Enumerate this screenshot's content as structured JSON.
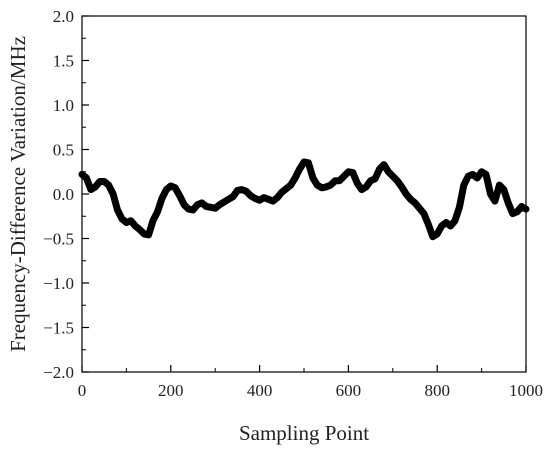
{
  "chart_data": {
    "type": "line",
    "xlabel": "Sampling Point",
    "ylabel": "Frequency-Difference Variation/MHz",
    "xlim": [
      0,
      1000
    ],
    "ylim": [
      -2.0,
      2.0
    ],
    "x_ticks": [
      0,
      200,
      400,
      600,
      800,
      1000
    ],
    "x_tick_labels": [
      "0",
      "200",
      "400",
      "600",
      "800",
      "1000"
    ],
    "y_ticks": [
      -2.0,
      -1.5,
      -1.0,
      -0.5,
      0.0,
      0.5,
      1.0,
      1.5,
      2.0
    ],
    "y_tick_labels": [
      "−2.0",
      "−1.5",
      "−1.0",
      "−0.5",
      "0.0",
      "0.5",
      "1.0",
      "1.5",
      "2.0"
    ],
    "grid": false,
    "line_color": "#000000",
    "series": [
      {
        "x": [
          0,
          10,
          20,
          30,
          40,
          50,
          60,
          70,
          80,
          90,
          100,
          110,
          120,
          130,
          140,
          150,
          160,
          170,
          180,
          190,
          200,
          210,
          220,
          230,
          240,
          250,
          260,
          270,
          280,
          290,
          300,
          310,
          320,
          330,
          340,
          350,
          360,
          370,
          380,
          390,
          400,
          410,
          420,
          430,
          440,
          450,
          460,
          470,
          480,
          490,
          500,
          510,
          520,
          530,
          540,
          550,
          560,
          570,
          580,
          590,
          600,
          610,
          620,
          630,
          640,
          650,
          660,
          670,
          680,
          690,
          700,
          710,
          720,
          730,
          740,
          750,
          760,
          770,
          780,
          790,
          800,
          810,
          820,
          830,
          840,
          850,
          860,
          870,
          880,
          890,
          900,
          910,
          920,
          930,
          940,
          950,
          960,
          970,
          980,
          990,
          1000
        ],
        "y": [
          0.22,
          0.18,
          0.05,
          0.08,
          0.14,
          0.14,
          0.1,
          0.0,
          -0.18,
          -0.28,
          -0.32,
          -0.3,
          -0.36,
          -0.4,
          -0.45,
          -0.46,
          -0.3,
          -0.2,
          -0.05,
          0.05,
          0.09,
          0.07,
          -0.02,
          -0.12,
          -0.17,
          -0.18,
          -0.12,
          -0.1,
          -0.14,
          -0.15,
          -0.16,
          -0.12,
          -0.09,
          -0.06,
          -0.03,
          0.04,
          0.05,
          0.03,
          -0.02,
          -0.05,
          -0.07,
          -0.04,
          -0.06,
          -0.08,
          -0.04,
          0.02,
          0.06,
          0.1,
          0.18,
          0.28,
          0.36,
          0.35,
          0.18,
          0.1,
          0.07,
          0.08,
          0.1,
          0.15,
          0.15,
          0.2,
          0.25,
          0.24,
          0.12,
          0.05,
          0.08,
          0.15,
          0.17,
          0.28,
          0.33,
          0.25,
          0.2,
          0.15,
          0.08,
          0.0,
          -0.06,
          -0.1,
          -0.16,
          -0.22,
          -0.34,
          -0.48,
          -0.45,
          -0.36,
          -0.32,
          -0.36,
          -0.3,
          -0.15,
          0.1,
          0.2,
          0.22,
          0.18,
          0.25,
          0.22,
          0.0,
          -0.08,
          0.1,
          0.05,
          -0.1,
          -0.22,
          -0.2,
          -0.14,
          -0.17
        ]
      }
    ]
  }
}
